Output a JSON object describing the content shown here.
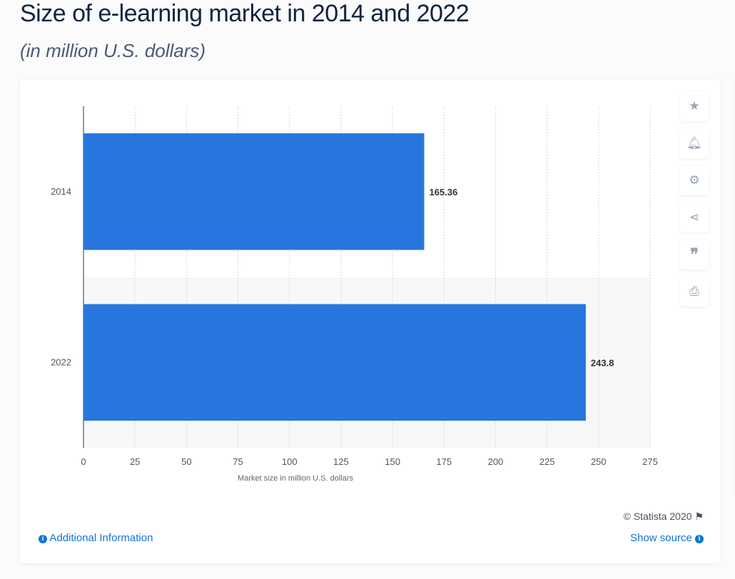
{
  "title": "Size of e-learning market in 2014 and 2022",
  "subtitle": "(in million U.S. dollars)",
  "chart_data": {
    "type": "bar",
    "orientation": "horizontal",
    "categories": [
      "2014",
      "2022"
    ],
    "values": [
      165.36,
      243.8
    ],
    "data_labels": [
      "165.36",
      "243.8"
    ],
    "xlabel": "Market size in million U.S. dollars",
    "ylabel": "",
    "xlim": [
      0,
      275
    ],
    "xticks": [
      0,
      25,
      50,
      75,
      100,
      125,
      150,
      175,
      200,
      225,
      250,
      275
    ],
    "grid": true,
    "bar_color": "#2876dd"
  },
  "tools": [
    "star-icon",
    "bell-icon",
    "gear-icon",
    "share-icon",
    "quote-icon",
    "print-icon"
  ],
  "footer": {
    "credit": "© Statista 2020",
    "additional_info": "Additional Information",
    "show_source": "Show source"
  },
  "colors": {
    "link": "#0e76d4",
    "title": "#0f2440"
  }
}
